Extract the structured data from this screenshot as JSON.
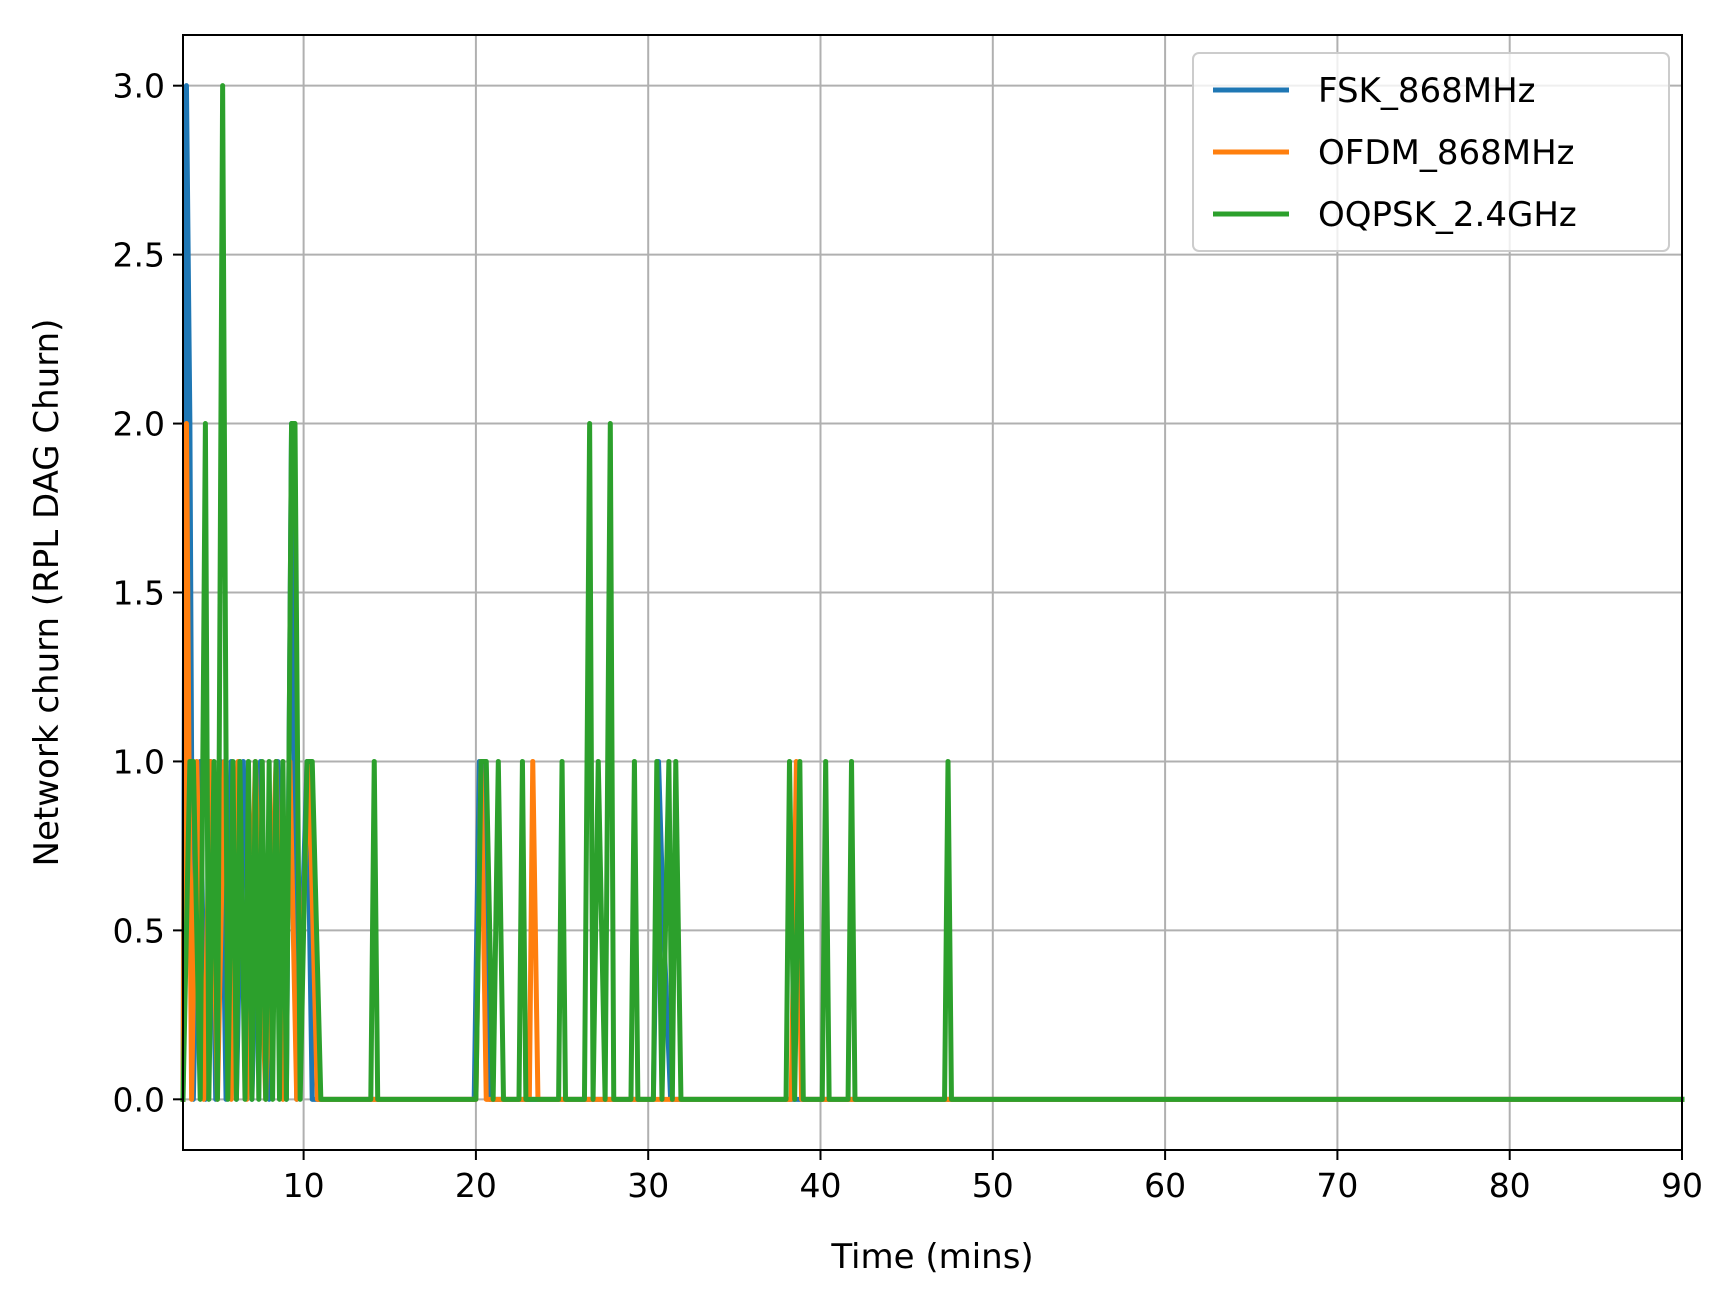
{
  "chart_data": {
    "type": "line",
    "title": "",
    "xlabel": "Time (mins)",
    "ylabel": "Network churn (RPL DAG Churn)",
    "xlim": [
      3,
      90
    ],
    "ylim": [
      -0.15,
      3.15
    ],
    "xticks": [
      10,
      20,
      30,
      40,
      50,
      60,
      70,
      80,
      90
    ],
    "xtick_labels": [
      "10",
      "20",
      "30",
      "40",
      "50",
      "60",
      "70",
      "80",
      "90"
    ],
    "yticks": [
      0.0,
      0.5,
      1.0,
      1.5,
      2.0,
      2.5,
      3.0
    ],
    "ytick_labels": [
      "0.0",
      "0.5",
      "1.0",
      "1.5",
      "2.0",
      "2.5",
      "3.0"
    ],
    "grid": true,
    "legend_position": "top-right",
    "series": [
      {
        "name": "FSK_868MHz",
        "color": "#1f77b4",
        "x": [
          3.0,
          3.2,
          3.4,
          3.6,
          4.0,
          4.3,
          4.6,
          4.9,
          5.2,
          5.5,
          5.8,
          6.1,
          6.5,
          7.0,
          7.5,
          8.0,
          8.5,
          9.0,
          9.3,
          9.6,
          10.2,
          10.5,
          11.0,
          19.9,
          20.2,
          20.5,
          20.8,
          21.5,
          22.0,
          30.3,
          30.6,
          30.9,
          31.3,
          32.0,
          90.0
        ],
        "y": [
          0,
          3,
          2,
          0,
          1,
          0,
          1,
          0,
          1,
          0,
          1,
          0,
          1,
          0,
          1,
          0,
          1,
          0,
          2,
          0,
          1,
          0,
          0,
          0,
          1,
          1,
          0,
          0,
          0,
          0,
          1,
          0.5,
          0,
          0,
          0
        ]
      },
      {
        "name": "OFDM_868MHz",
        "color": "#ff7f0e",
        "x": [
          3.0,
          3.2,
          3.5,
          3.8,
          4.2,
          4.6,
          5.0,
          5.4,
          5.8,
          6.2,
          6.7,
          7.2,
          7.8,
          8.4,
          8.8,
          9.2,
          9.6,
          10.3,
          10.8,
          11.0,
          20.0,
          20.3,
          20.6,
          23.1,
          23.3,
          23.6,
          24.0,
          38.3,
          38.6,
          38.9,
          42.0,
          42.3,
          90.0
        ],
        "y": [
          0,
          2,
          0,
          1,
          0,
          1,
          0,
          1,
          0,
          1,
          0,
          1,
          0,
          1,
          0,
          1,
          0,
          1,
          0,
          0,
          0,
          1,
          0,
          0,
          1,
          0,
          0,
          0,
          1,
          0,
          0,
          0,
          0
        ]
      },
      {
        "name": "OQPSK_2.4GHz",
        "color": "#2ca02c",
        "x": [
          3.0,
          3.4,
          3.6,
          4.0,
          4.3,
          4.5,
          4.8,
          5.0,
          5.3,
          5.6,
          5.9,
          6.1,
          6.3,
          6.6,
          6.8,
          7.0,
          7.2,
          7.4,
          7.6,
          7.8,
          8.0,
          8.2,
          8.4,
          8.6,
          8.8,
          9.0,
          9.3,
          9.5,
          9.8,
          10.2,
          10.5,
          11.0,
          13.9,
          14.1,
          14.3,
          20.0,
          20.3,
          20.6,
          21.0,
          21.3,
          21.6,
          22.5,
          22.7,
          22.9,
          24.8,
          25.0,
          25.2,
          26.3,
          26.6,
          26.8,
          27.1,
          27.5,
          27.8,
          28.0,
          28.3,
          29.0,
          29.2,
          29.4,
          30.3,
          30.5,
          30.8,
          31.2,
          31.4,
          31.6,
          31.9,
          38.0,
          38.2,
          38.5,
          38.8,
          39.0,
          40.1,
          40.3,
          40.5,
          41.6,
          41.8,
          42.0,
          42.3,
          47.2,
          47.4,
          47.6,
          90.0
        ],
        "y": [
          0,
          1,
          1,
          0,
          2,
          0,
          1,
          0,
          3,
          0,
          1,
          0,
          1,
          0,
          1,
          0,
          1,
          0,
          1,
          0,
          1,
          0,
          1,
          0,
          1,
          0,
          2,
          2,
          0,
          1,
          1,
          0,
          0,
          1,
          0,
          0,
          1,
          1,
          0,
          1,
          0,
          0,
          1,
          0,
          0,
          1,
          0,
          0,
          2,
          0,
          1,
          0,
          2,
          0,
          0,
          0,
          1,
          0,
          0,
          1,
          0,
          1,
          0,
          1,
          0,
          0,
          1,
          0,
          1,
          0,
          0,
          1,
          0,
          0,
          1,
          0,
          0,
          0,
          1,
          0,
          0
        ]
      }
    ]
  }
}
